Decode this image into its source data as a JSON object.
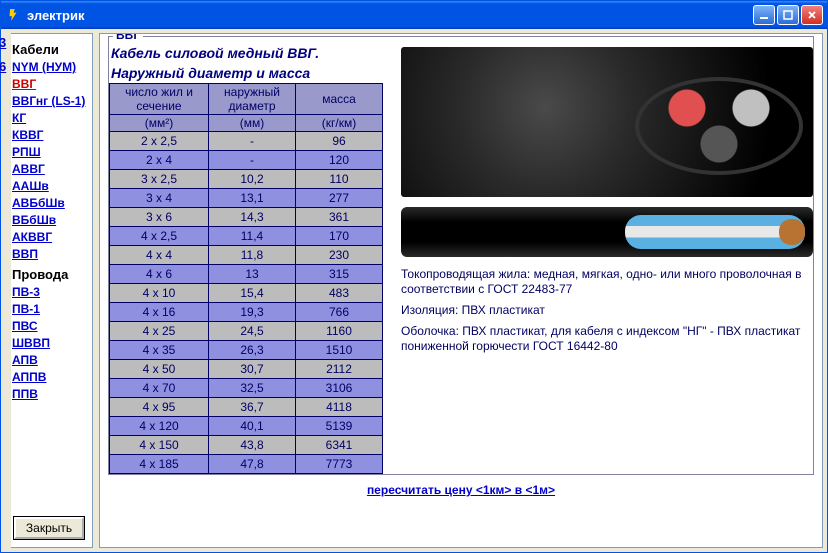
{
  "window": {
    "title": "электрик"
  },
  "sidebar": {
    "heading_cables": "Кабели",
    "heading_wires": "Провода",
    "cables": [
      {
        "label": "NYM (НУМ)",
        "selected": false
      },
      {
        "label": "ВВГ",
        "selected": true
      },
      {
        "label": "ВВГнг (LS-1)",
        "selected": false
      },
      {
        "label": "КГ",
        "selected": false
      },
      {
        "label": "КВВГ",
        "selected": false
      },
      {
        "label": "РПШ",
        "selected": false
      },
      {
        "label": "АВВГ",
        "selected": false
      },
      {
        "label": "ААШв",
        "selected": false
      },
      {
        "label": "АВБбШв",
        "selected": false
      },
      {
        "label": "ВБбШв",
        "selected": false
      },
      {
        "label": "АКВВГ",
        "selected": false
      },
      {
        "label": "ВВП",
        "selected": false
      }
    ],
    "wires": [
      {
        "label": "ПВ-3"
      },
      {
        "label": "ПВ-1"
      },
      {
        "label": "ПВС"
      },
      {
        "label": "ШВВП"
      },
      {
        "label": "АПВ"
      },
      {
        "label": "АППВ"
      },
      {
        "label": "ППВ"
      }
    ],
    "close_label": "Закрыть"
  },
  "legend": "ВВГ",
  "table": {
    "title_line1": "Кабель силовой медный ВВГ.",
    "title_line2": "Наружный диаметр и масса",
    "columns": [
      {
        "header": "число жил и сечение",
        "unit": "(мм²)"
      },
      {
        "header": "наружный диаметр",
        "unit": "(мм)"
      },
      {
        "header": "масса",
        "unit": "(кг/км)"
      }
    ],
    "rows": [
      [
        "2 х 2,5",
        "-",
        "96"
      ],
      [
        "2 х 4",
        "-",
        "120"
      ],
      [
        "3 х 2,5",
        "10,2",
        "110"
      ],
      [
        "3 х 4",
        "13,1",
        "277"
      ],
      [
        "3 х 6",
        "14,3",
        "361"
      ],
      [
        "4 х 2,5",
        "11,4",
        "170"
      ],
      [
        "4 х 4",
        "11,8",
        "230"
      ],
      [
        "4 х 6",
        "13",
        "315"
      ],
      [
        "4 х 10",
        "15,4",
        "483"
      ],
      [
        "4 х 16",
        "19,3",
        "766"
      ],
      [
        "4 х 25",
        "24,5",
        "1160"
      ],
      [
        "4 х 35",
        "26,3",
        "1510"
      ],
      [
        "4 х 50",
        "30,7",
        "2112"
      ],
      [
        "4 х 70",
        "32,5",
        "3106"
      ],
      [
        "4 х 95",
        "36,7",
        "4118"
      ],
      [
        "4 х 120",
        "40,1",
        "5139"
      ],
      [
        "4 х 150",
        "43,8",
        "6341"
      ],
      [
        "4 х 185",
        "47,8",
        "7773"
      ]
    ],
    "band_colors": [
      "#bcbcbc",
      "#9090e0"
    ],
    "header_bg": "#9999cc",
    "border_color": "#000066"
  },
  "description": {
    "p1": "Токопроводящая жила: медная, мягкая, одно- или много проволочная в соответствии с ГОСТ 22483-77",
    "p2": "Изоляция: ПВХ пластикат",
    "p3": "Оболочка: ПВХ пластикат, для кабеля с индексом \"НГ\" - ПВХ пластикат пониженной горючести ГОСТ 16442-80"
  },
  "recalc_link": "пересчитать цену <1км> в <1м>",
  "left_hint": {
    "a": "3",
    "b": "6"
  }
}
